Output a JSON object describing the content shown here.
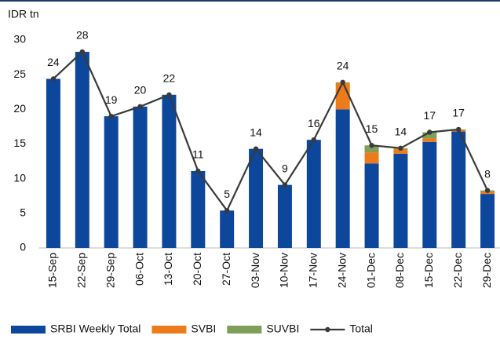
{
  "chart_data": {
    "type": "stacked_bar_line",
    "ylabel": "IDR tn",
    "categories": [
      "15-Sep",
      "22-Sep",
      "29-Sep",
      "06-Oct",
      "13-Oct",
      "20-Oct",
      "27-Oct",
      "03-Nov",
      "10-Nov",
      "17-Nov",
      "24-Nov",
      "01-Dec",
      "08-Dec",
      "15-Dec",
      "22-Dec",
      "29-Dec"
    ],
    "series": [
      {
        "name": "SRBI Weekly Total",
        "color": "#0d479c",
        "values": [
          24.4,
          28.3,
          19.0,
          20.4,
          22.1,
          11.1,
          5.4,
          14.3,
          9.1,
          15.6,
          20.0,
          12.2,
          13.6,
          15.3,
          16.8,
          7.8
        ]
      },
      {
        "name": "SVBI",
        "color": "#ee7b1b",
        "values": [
          0,
          0,
          0,
          0,
          0,
          0,
          0,
          0,
          0,
          0,
          3.8,
          1.6,
          0.7,
          0.5,
          0.3,
          0.3
        ]
      },
      {
        "name": "SUVBI",
        "color": "#7e9e5a",
        "values": [
          0,
          0,
          0,
          0,
          0,
          0,
          0,
          0,
          0,
          0,
          0.1,
          1.0,
          0.1,
          0.9,
          0,
          0.2
        ]
      },
      {
        "name": "Total",
        "color": "#3a3a3a",
        "line": true,
        "values": [
          24.4,
          28.3,
          19.0,
          20.4,
          22.1,
          11.1,
          5.4,
          14.3,
          9.1,
          15.6,
          23.9,
          14.8,
          14.4,
          16.7,
          17.1,
          8.3
        ],
        "value_labels": [
          "24",
          "28",
          "19",
          "20",
          "22",
          "11",
          "5",
          "14",
          "9",
          "16",
          "24",
          "15",
          "14",
          "17",
          "17",
          "8"
        ]
      }
    ],
    "ylim": [
      0,
      30
    ],
    "yticks": [
      0,
      5,
      10,
      15,
      20,
      25,
      30
    ],
    "grid": false,
    "legend": "bottom"
  }
}
